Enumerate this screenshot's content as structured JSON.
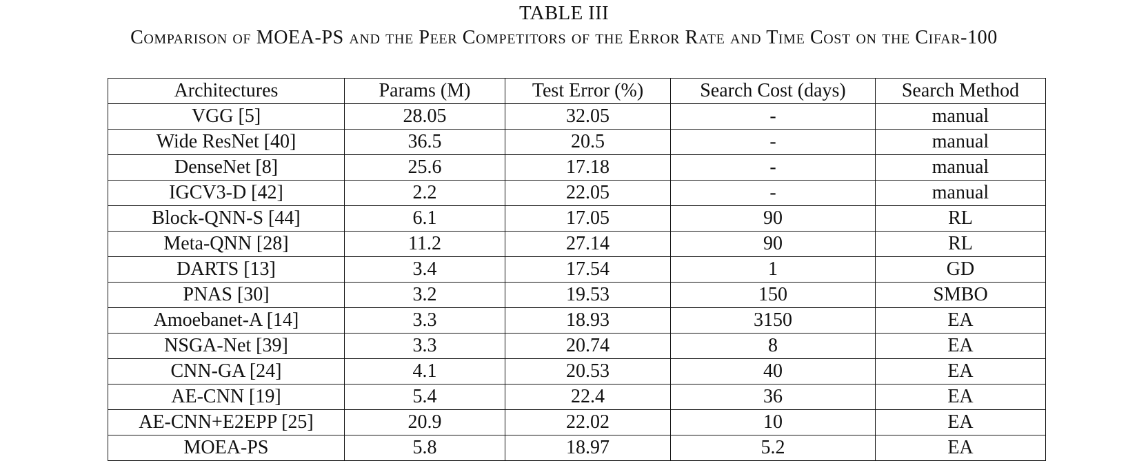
{
  "table_label": "TABLE III",
  "caption": "Comparison of MOEA-PS and the Peer Competitors of the Error Rate and Time Cost on the Cifar-100",
  "columns": [
    "Architectures",
    "Params (M)",
    "Test Error (%)",
    "Search Cost (days)",
    "Search Method"
  ],
  "rows": [
    [
      "VGG [5]",
      "28.05",
      "32.05",
      "-",
      "manual"
    ],
    [
      "Wide ResNet [40]",
      "36.5",
      "20.5",
      "-",
      "manual"
    ],
    [
      "DenseNet [8]",
      "25.6",
      "17.18",
      "-",
      "manual"
    ],
    [
      "IGCV3-D [42]",
      "2.2",
      "22.05",
      "-",
      "manual"
    ],
    [
      "Block-QNN-S [44]",
      "6.1",
      "17.05",
      "90",
      "RL"
    ],
    [
      "Meta-QNN [28]",
      "11.2",
      "27.14",
      "90",
      "RL"
    ],
    [
      "DARTS [13]",
      "3.4",
      "17.54",
      "1",
      "GD"
    ],
    [
      "PNAS [30]",
      "3.2",
      "19.53",
      "150",
      "SMBO"
    ],
    [
      "Amoebanet-A [14]",
      "3.3",
      "18.93",
      "3150",
      "EA"
    ],
    [
      "NSGA-Net [39]",
      "3.3",
      "20.74",
      "8",
      "EA"
    ],
    [
      "CNN-GA [24]",
      "4.1",
      "20.53",
      "40",
      "EA"
    ],
    [
      "AE-CNN [19]",
      "5.4",
      "22.4",
      "36",
      "EA"
    ],
    [
      "AE-CNN+E2EPP [25]",
      "20.9",
      "22.02",
      "10",
      "EA"
    ],
    [
      "MOEA-PS",
      "5.8",
      "18.97",
      "5.2",
      "EA"
    ]
  ]
}
